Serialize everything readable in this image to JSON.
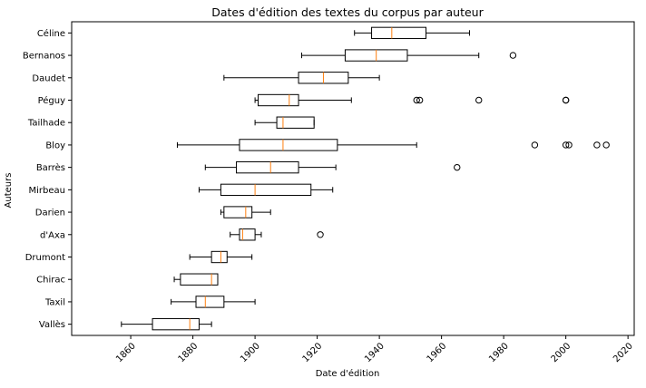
{
  "chart_data": {
    "type": "boxplot",
    "orientation": "horizontal",
    "title": "Dates d'édition des textes du corpus par auteur",
    "xlabel": "Date d'édition",
    "ylabel": "Auteurs",
    "xlim": [
      1841,
      2022
    ],
    "xticks": [
      1860,
      1880,
      1900,
      1920,
      1940,
      1960,
      1980,
      2000,
      2020
    ],
    "xtick_labels": [
      "1860",
      "1880",
      "1900",
      "1920",
      "1940",
      "1960",
      "1980",
      "2000",
      "2020"
    ],
    "grid": false,
    "box_color": "#000000",
    "median_color": "#ff7f0e",
    "series": [
      {
        "label": "Céline",
        "whisker_low": 1932,
        "q1": 1937.5,
        "median": 1944,
        "q3": 1955,
        "whisker_high": 1969,
        "outliers": []
      },
      {
        "label": "Bernanos",
        "whisker_low": 1915,
        "q1": 1929,
        "median": 1939,
        "q3": 1949,
        "whisker_high": 1972,
        "outliers": [
          1983
        ]
      },
      {
        "label": "Daudet",
        "whisker_low": 1890,
        "q1": 1914,
        "median": 1922,
        "q3": 1930,
        "whisker_high": 1940,
        "outliers": []
      },
      {
        "label": "Péguy",
        "whisker_low": 1900,
        "q1": 1901,
        "median": 1911,
        "q3": 1914,
        "whisker_high": 1931,
        "outliers": [
          1952,
          1953,
          1972,
          2000,
          2000
        ]
      },
      {
        "label": "Tailhade",
        "whisker_low": 1900,
        "q1": 1907,
        "median": 1909,
        "q3": 1919,
        "whisker_high": 1919,
        "outliers": []
      },
      {
        "label": "Bloy",
        "whisker_low": 1875,
        "q1": 1895,
        "median": 1909,
        "q3": 1926.5,
        "whisker_high": 1952,
        "outliers": [
          1990,
          2000,
          2001,
          2010,
          2013
        ]
      },
      {
        "label": "Barrès",
        "whisker_low": 1884,
        "q1": 1894,
        "median": 1905,
        "q3": 1914,
        "whisker_high": 1926,
        "outliers": [
          1965
        ]
      },
      {
        "label": "Mirbeau",
        "whisker_low": 1882,
        "q1": 1889,
        "median": 1900,
        "q3": 1918,
        "whisker_high": 1925,
        "outliers": []
      },
      {
        "label": "Darien",
        "whisker_low": 1889,
        "q1": 1890,
        "median": 1897,
        "q3": 1899,
        "whisker_high": 1905,
        "outliers": []
      },
      {
        "label": "d'Axa",
        "whisker_low": 1892,
        "q1": 1895,
        "median": 1896,
        "q3": 1900,
        "whisker_high": 1902,
        "outliers": [
          1921
        ]
      },
      {
        "label": "Drumont",
        "whisker_low": 1879,
        "q1": 1886,
        "median": 1889,
        "q3": 1891,
        "whisker_high": 1899,
        "outliers": []
      },
      {
        "label": "Chirac",
        "whisker_low": 1874,
        "q1": 1876,
        "median": 1886,
        "q3": 1888,
        "whisker_high": 1888,
        "outliers": []
      },
      {
        "label": "Taxil",
        "whisker_low": 1873,
        "q1": 1881,
        "median": 1884,
        "q3": 1890,
        "whisker_high": 1900,
        "outliers": []
      },
      {
        "label": "Vallès",
        "whisker_low": 1857,
        "q1": 1867,
        "median": 1879,
        "q3": 1882,
        "whisker_high": 1886,
        "outliers": []
      }
    ]
  }
}
